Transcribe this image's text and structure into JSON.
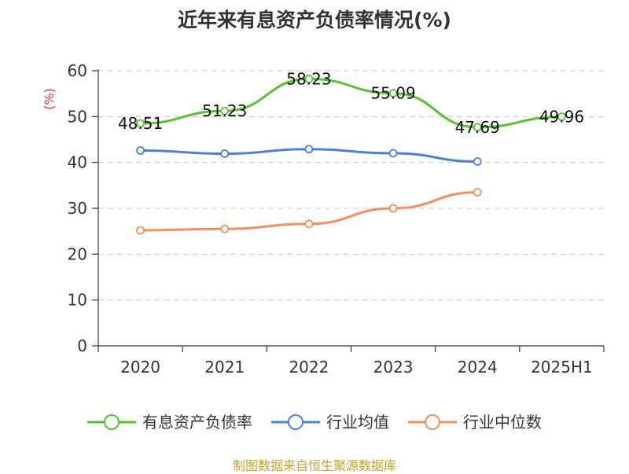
{
  "title": "近年来有息资产负债率情况(%)",
  "source": "制图数据来自恒生聚源数据库",
  "chart_data": {
    "type": "line",
    "title": "近年来有息资产负债率情况(%)",
    "ylabel": "(%)",
    "categories": [
      "2020",
      "2021",
      "2022",
      "2023",
      "2024",
      "2025H1"
    ],
    "ylim": [
      0,
      60
    ],
    "yticks": [
      0,
      10,
      20,
      30,
      40,
      50,
      60
    ],
    "grid": true,
    "legend_position": "bottom",
    "series": [
      {
        "name": "有息资产负债率",
        "color": "#5ac232",
        "values": [
          48.51,
          51.23,
          58.23,
          55.09,
          47.69,
          49.96
        ],
        "show_labels": true
      },
      {
        "name": "行业均值",
        "color": "#4d80d8",
        "values": [
          42.6,
          41.9,
          42.9,
          42.0,
          40.2,
          null
        ],
        "show_labels": false
      },
      {
        "name": "行业中位数",
        "color": "#f49060",
        "values": [
          25.2,
          25.5,
          26.6,
          30.0,
          33.5,
          null
        ],
        "show_labels": false
      }
    ]
  }
}
